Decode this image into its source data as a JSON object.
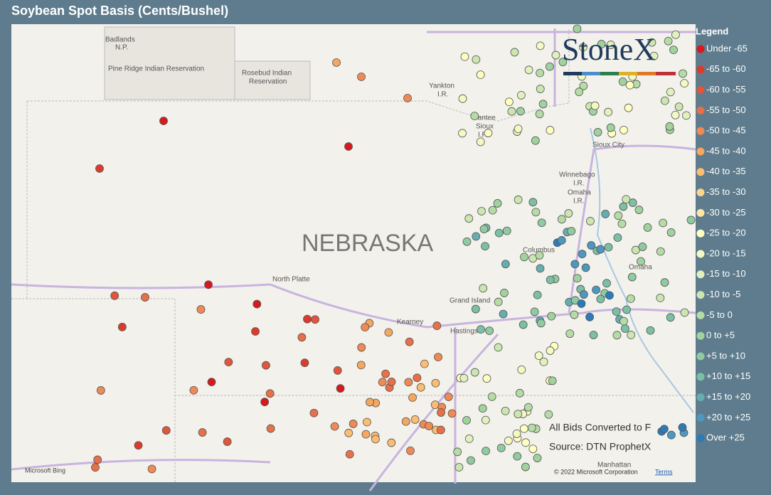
{
  "header": {
    "title": "Soybean Spot Basis (Cents/Bushel)"
  },
  "legend": {
    "title": "Legend",
    "items": [
      {
        "label": "Under -65",
        "color": "#d7191c"
      },
      {
        "label": "-65 to -60",
        "color": "#dc3b2c"
      },
      {
        "label": "-60 to -55",
        "color": "#e1553a"
      },
      {
        "label": "-55 to -50",
        "color": "#e87049"
      },
      {
        "label": "-50 to -45",
        "color": "#f08a55"
      },
      {
        "label": "-45 to -40",
        "color": "#f5a660"
      },
      {
        "label": "-40 to -35",
        "color": "#fbbd72"
      },
      {
        "label": "-35 to -30",
        "color": "#fdd38a"
      },
      {
        "label": "-30 to -25",
        "color": "#fee7a0"
      },
      {
        "label": "-25 to -20",
        "color": "#ffffbf"
      },
      {
        "label": "-20 to -15",
        "color": "#f2f9c2"
      },
      {
        "label": "-15 to -10",
        "color": "#e0f1bd"
      },
      {
        "label": "-10 to -5",
        "color": "#cbe6b0"
      },
      {
        "label": "-5 to 0",
        "color": "#b6dca6"
      },
      {
        "label": "0 to +5",
        "color": "#a0d29e"
      },
      {
        "label": "+5 to +10",
        "color": "#8fcaa0"
      },
      {
        "label": "+10 to +15",
        "color": "#7bbfa5"
      },
      {
        "label": "+15 to +20",
        "color": "#65aeb0"
      },
      {
        "label": "+20 to +25",
        "color": "#4e98be"
      },
      {
        "label": "Over +25",
        "color": "#2c7bb6"
      }
    ]
  },
  "map": {
    "labels": [
      "Badlands",
      "N.P.",
      "Pine Ridge Indian Reservation",
      "Rosebud Indian",
      "Reservation",
      "Yankton",
      "I.R.",
      "Santee",
      "Sioux",
      "I.R.",
      "NEBRASKA",
      "North Platte",
      "Grand Island",
      "Kearney",
      "Hastings",
      "Columbus",
      "Omaha",
      "Sioux City",
      "Winnebago",
      "I.R.",
      "Omaha",
      "I.R.",
      "Manhattan"
    ],
    "annotations": [
      "All Bids Converted to F",
      "Source: DTN ProphetX"
    ],
    "logo": "StoneX",
    "bing": "Microsoft Bing",
    "copyright": "© 2022 Microsoft Corporation",
    "terms": "Terms"
  }
}
